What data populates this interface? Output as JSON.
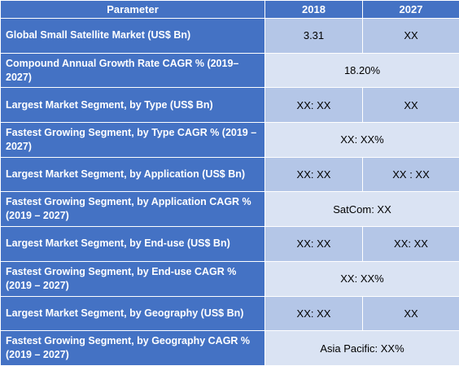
{
  "table": {
    "headers": [
      "Parameter",
      "2018",
      "2027"
    ],
    "rows": [
      {
        "parameter": "Global Small Satellite Market (US$ Bn)",
        "v2018": "3.31",
        "v2027": "XX"
      },
      {
        "parameter": "Compound Annual Growth Rate CAGR % (2019–2027)",
        "merged": "18.20%"
      },
      {
        "parameter": "Largest Market Segment, by Type (US$ Bn)",
        "v2018": "XX: XX",
        "v2027": "XX"
      },
      {
        "parameter": "Fastest Growing Segment, by Type CAGR % (2019 – 2027)",
        "merged": "XX: XX%"
      },
      {
        "parameter": "Largest Market Segment, by Application (US$ Bn)",
        "v2018": "XX: XX",
        "v2027": "XX : XX"
      },
      {
        "parameter": "Fastest Growing Segment, by Application CAGR % (2019 – 2027)",
        "merged": "SatCom: XX"
      },
      {
        "parameter": "Largest Market Segment, by End-use (US$ Bn)",
        "v2018": "XX: XX",
        "v2027": "XX: XX"
      },
      {
        "parameter": "Fastest Growing Segment, by End-use CAGR % (2019 – 2027)",
        "merged": "XX: XX%"
      },
      {
        "parameter": "Largest Market Segment, by Geography (US$ Bn)",
        "v2018": "XX: XX",
        "v2027": "XX"
      },
      {
        "parameter": "Fastest Growing Segment, by Geography CAGR % (2019 – 2027)",
        "merged": "Asia Pacific: XX%"
      }
    ]
  }
}
